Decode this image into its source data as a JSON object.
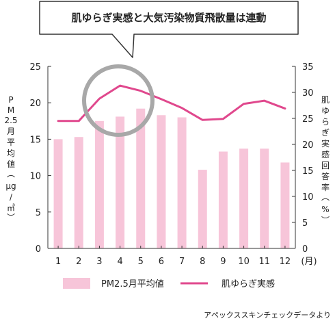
{
  "callout": {
    "text": "肌ゆらぎ実感と大気汚染物質飛散量は連動"
  },
  "chart_data": {
    "type": "bar+line",
    "categories": [
      "1",
      "2",
      "3",
      "4",
      "5",
      "6",
      "7",
      "8",
      "9",
      "10",
      "11",
      "12"
    ],
    "x_unit": "(月)",
    "series": [
      {
        "name": "PM2.5月平均値",
        "type": "bar",
        "axis": "left",
        "values": [
          15.0,
          15.3,
          17.5,
          18.1,
          19.2,
          18.3,
          18.0,
          10.8,
          13.3,
          13.7,
          13.7,
          11.8
        ]
      },
      {
        "name": "肌ゆらぎ実感",
        "type": "line",
        "axis": "right",
        "values": [
          24.5,
          24.5,
          28.8,
          31.3,
          30.3,
          28.7,
          27.0,
          24.7,
          24.9,
          27.8,
          28.4,
          26.9
        ]
      }
    ],
    "left_axis": {
      "label": "PM2.5月平均値(μg/㎥)",
      "ylim": [
        0,
        25
      ],
      "ticks": [
        0,
        5,
        10,
        15,
        20,
        25
      ]
    },
    "right_axis": {
      "label": "肌ゆらぎ実感回答率(%)",
      "ylim": [
        0,
        35
      ],
      "ticks": [
        0,
        5,
        10,
        15,
        20,
        25,
        30,
        35
      ]
    },
    "grid": false,
    "legend": "bottom",
    "annotation": "circle highlighting months 3-5"
  },
  "source": "アペックススキンチェックデータより",
  "colors": {
    "bar": "#f7c5d9",
    "line": "#e0488d",
    "circle": "#a8a8a8",
    "axis": "#333333"
  }
}
